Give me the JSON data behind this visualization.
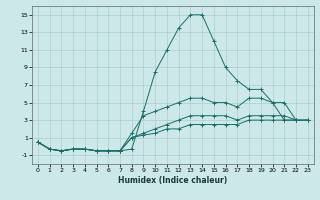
{
  "xlabel": "Humidex (Indice chaleur)",
  "bg_color": "#cce8e8",
  "line_color": "#1a6e6a",
  "grid_color": "#aecece",
  "xlim": [
    -0.5,
    23.5
  ],
  "ylim": [
    -2,
    16
  ],
  "xticks": [
    0,
    1,
    2,
    3,
    4,
    5,
    6,
    7,
    8,
    9,
    10,
    11,
    12,
    13,
    14,
    15,
    16,
    17,
    18,
    19,
    20,
    21,
    22,
    23
  ],
  "yticks": [
    -1,
    1,
    3,
    5,
    7,
    9,
    11,
    13,
    15
  ],
  "x_data": [
    0,
    1,
    2,
    3,
    4,
    5,
    6,
    7,
    8,
    9,
    10,
    11,
    12,
    13,
    14,
    15,
    16,
    17,
    18,
    19,
    20,
    21,
    22,
    23
  ],
  "series": [
    [
      0.5,
      -0.3,
      -0.5,
      -0.3,
      -0.3,
      -0.5,
      -0.5,
      -0.5,
      -0.3,
      4.0,
      8.5,
      11.0,
      13.5,
      15.0,
      15.0,
      12.0,
      9.0,
      7.5,
      6.5,
      6.5,
      5.0,
      3.0,
      3.0,
      null
    ],
    [
      0.5,
      -0.3,
      -0.5,
      -0.3,
      -0.3,
      -0.5,
      -0.5,
      -0.5,
      1.5,
      3.5,
      4.0,
      4.5,
      5.0,
      5.5,
      5.5,
      5.0,
      5.0,
      4.5,
      5.5,
      5.5,
      5.0,
      5.0,
      3.0,
      3.0
    ],
    [
      0.5,
      -0.3,
      -0.5,
      -0.3,
      -0.3,
      -0.5,
      -0.5,
      -0.5,
      1.0,
      1.5,
      2.0,
      2.5,
      3.0,
      3.5,
      3.5,
      3.5,
      3.5,
      3.0,
      3.5,
      3.5,
      3.5,
      3.5,
      3.0,
      3.0
    ],
    [
      0.5,
      -0.3,
      -0.5,
      -0.3,
      -0.3,
      -0.5,
      -0.5,
      -0.5,
      1.0,
      1.3,
      1.5,
      2.0,
      2.0,
      2.5,
      2.5,
      2.5,
      2.5,
      2.5,
      3.0,
      3.0,
      3.0,
      3.0,
      3.0,
      3.0
    ]
  ]
}
